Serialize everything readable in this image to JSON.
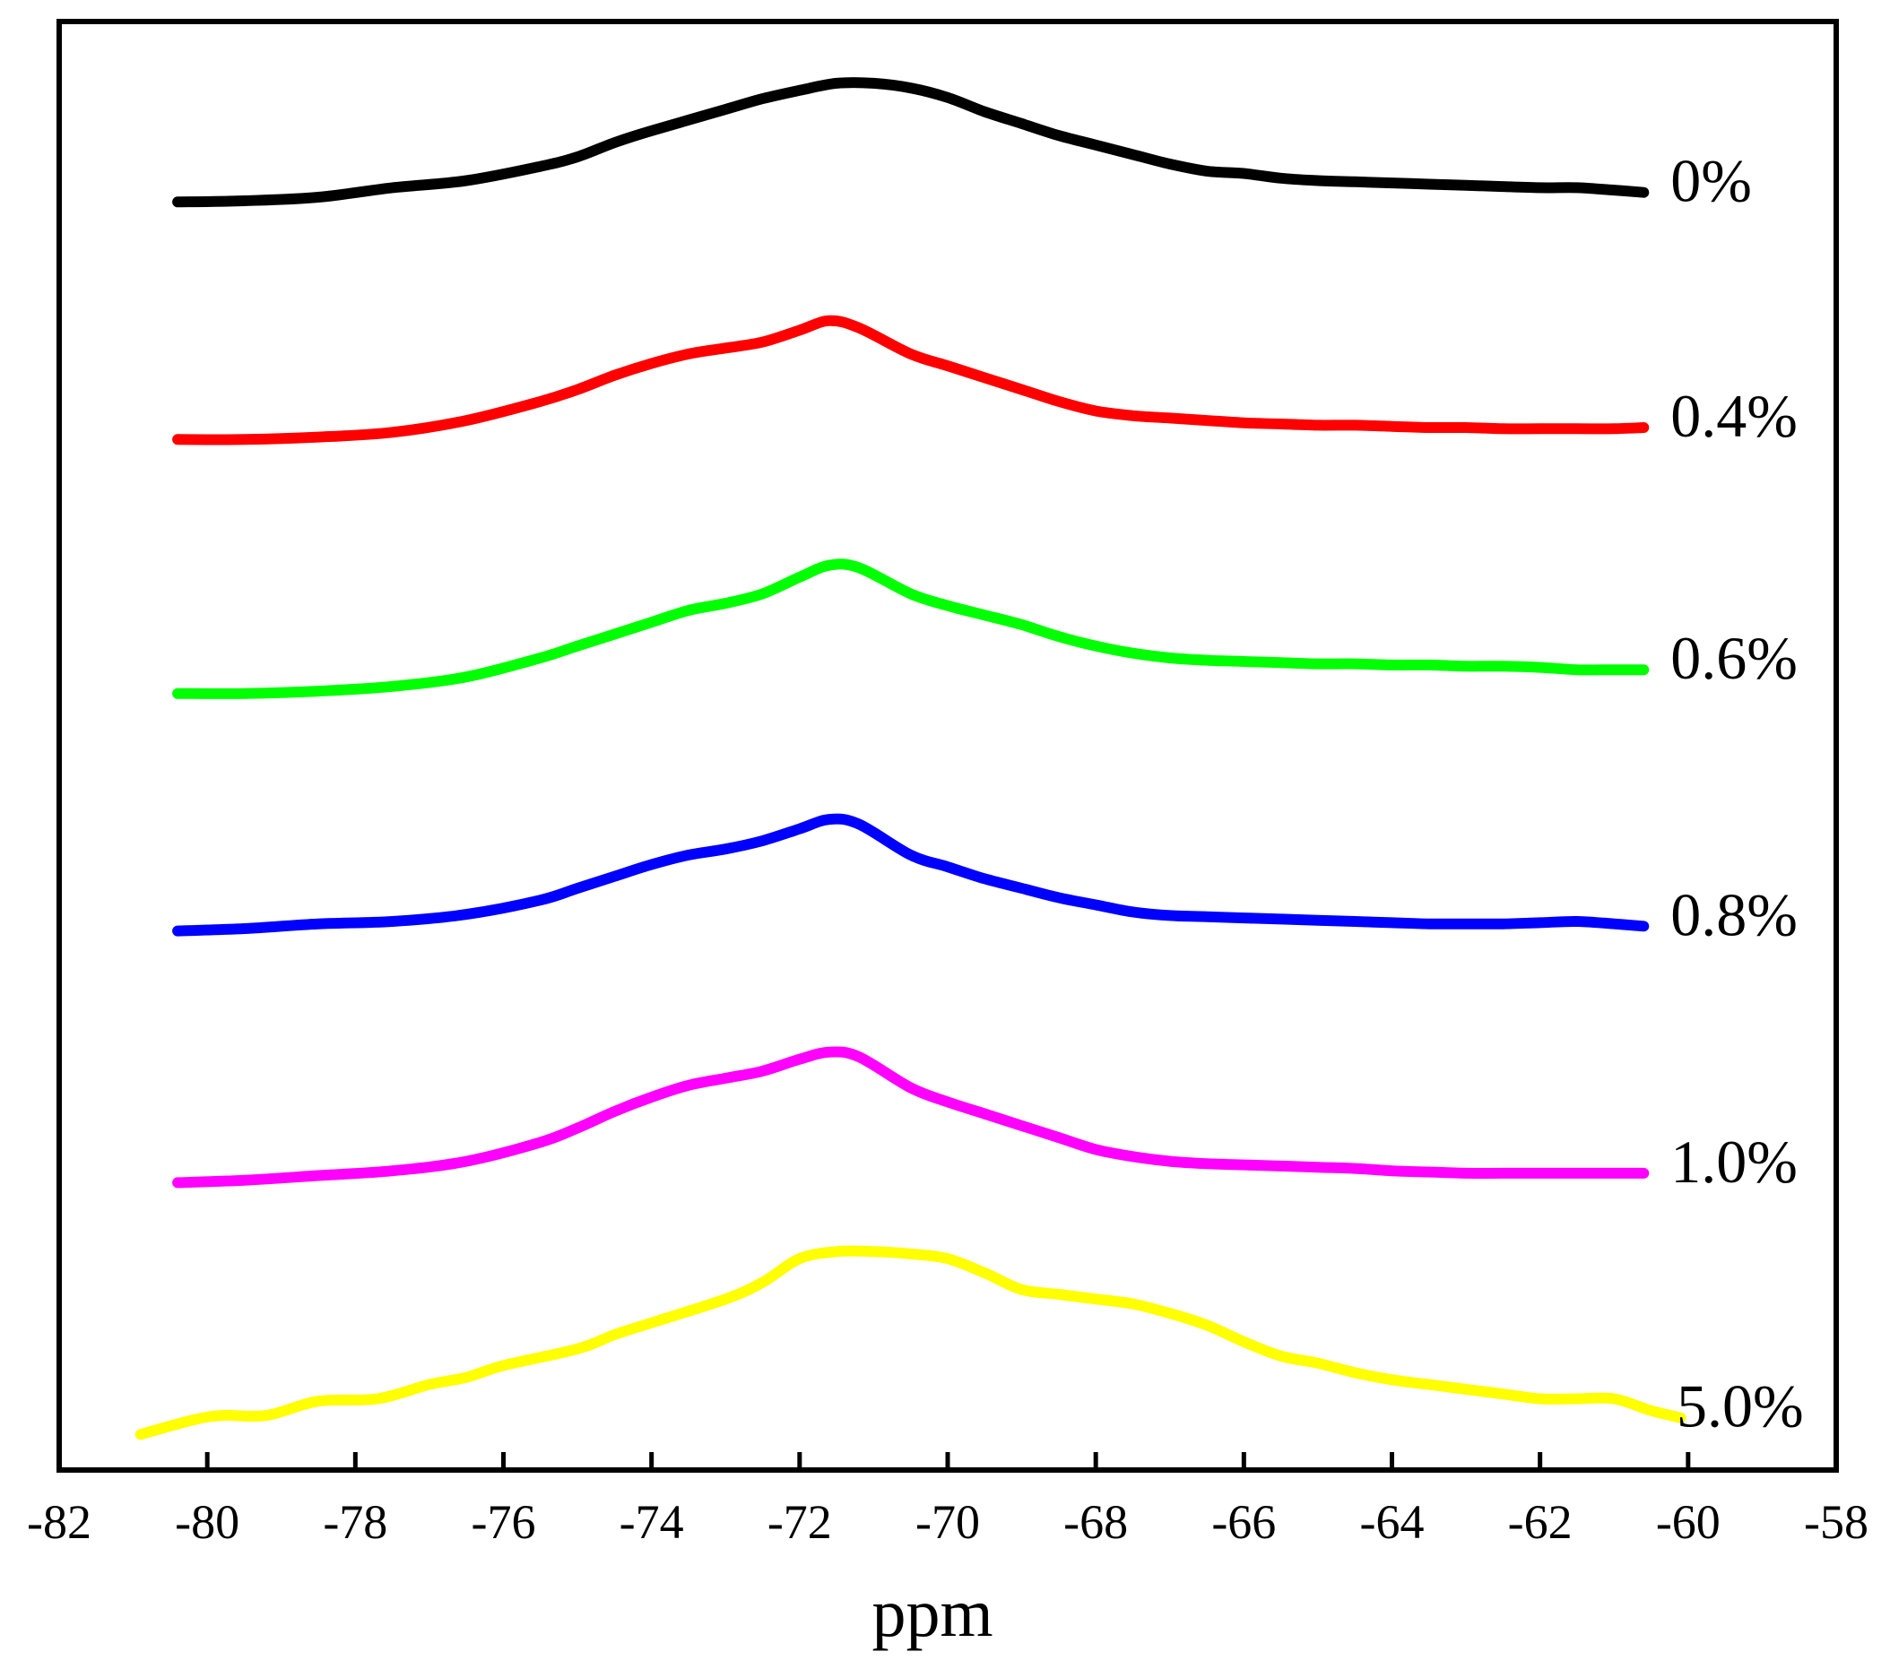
{
  "chart_data": {
    "type": "line",
    "title": "",
    "xlabel": "ppm",
    "ylabel": "",
    "xlim": [
      -82,
      -58
    ],
    "ylim": [
      -0.1,
      6.0
    ],
    "grid": false,
    "legend": "inline labels at right end of each curve",
    "xticks": [
      -82,
      -80,
      -78,
      -76,
      -74,
      -72,
      -70,
      -68,
      -66,
      -64,
      -62,
      -60,
      -58
    ],
    "xtick_labels": [
      "-82",
      "-80",
      "-78",
      "-76",
      "-74",
      "-72",
      "-70",
      "-68",
      "-66",
      "-64",
      "-62",
      "-60",
      "-58"
    ],
    "series": [
      {
        "name": "0%",
        "label": "0%",
        "color": "#000000",
        "x": [
          -80.4,
          -79.5,
          -78.5,
          -77.5,
          -76.5,
          -75.5,
          -75.0,
          -74.5,
          -74.0,
          -73.0,
          -72.5,
          -72.0,
          -71.5,
          -71.0,
          -70.5,
          -70.0,
          -69.5,
          -69.0,
          -68.5,
          -68.0,
          -67.5,
          -67.0,
          -66.5,
          -66.0,
          -65.5,
          -65.0,
          -64.5,
          -64.0,
          -63.5,
          -63.0,
          -62.5,
          -62.0,
          -61.5,
          -61.0,
          -60.6
        ],
        "y": [
          5.24,
          5.245,
          5.26,
          5.3,
          5.33,
          5.39,
          5.43,
          5.49,
          5.54,
          5.63,
          5.675,
          5.71,
          5.74,
          5.74,
          5.72,
          5.68,
          5.62,
          5.57,
          5.52,
          5.48,
          5.44,
          5.4,
          5.37,
          5.36,
          5.34,
          5.33,
          5.325,
          5.32,
          5.315,
          5.31,
          5.305,
          5.3,
          5.3,
          5.29,
          5.28
        ]
      },
      {
        "name": "0.4%",
        "label": "0.4%",
        "color": "#ff0000",
        "x": [
          -80.4,
          -79.5,
          -78.5,
          -77.5,
          -76.5,
          -75.5,
          -75.0,
          -74.5,
          -74.0,
          -73.5,
          -73.0,
          -72.5,
          -72.0,
          -71.6,
          -71.2,
          -70.5,
          -70.0,
          -69.5,
          -69.0,
          -68.5,
          -68.0,
          -67.5,
          -67.0,
          -66.5,
          -66.0,
          -65.5,
          -65.0,
          -64.5,
          -64.0,
          -63.5,
          -63.0,
          -62.5,
          -62.0,
          -61.5,
          -61.0,
          -60.6
        ],
        "y": [
          4.24,
          4.24,
          4.25,
          4.27,
          4.32,
          4.4,
          4.45,
          4.51,
          4.56,
          4.6,
          4.625,
          4.65,
          4.7,
          4.74,
          4.71,
          4.6,
          4.55,
          4.5,
          4.45,
          4.4,
          4.36,
          4.34,
          4.33,
          4.32,
          4.31,
          4.305,
          4.3,
          4.3,
          4.295,
          4.29,
          4.29,
          4.285,
          4.285,
          4.285,
          4.285,
          4.29
        ]
      },
      {
        "name": "0.6%",
        "label": "0.6%",
        "color": "#00ff00",
        "x": [
          -80.4,
          -79.5,
          -78.5,
          -77.5,
          -76.5,
          -75.5,
          -75.0,
          -74.5,
          -74.0,
          -73.5,
          -73.0,
          -72.5,
          -72.0,
          -71.6,
          -71.2,
          -70.5,
          -70.0,
          -69.5,
          -69.0,
          -68.5,
          -68.0,
          -67.5,
          -67.0,
          -66.5,
          -66.0,
          -65.5,
          -65.0,
          -64.5,
          -64.0,
          -63.5,
          -63.0,
          -62.5,
          -62.0,
          -61.5,
          -61.0,
          -60.6
        ],
        "y": [
          3.17,
          3.17,
          3.18,
          3.2,
          3.24,
          3.32,
          3.37,
          3.42,
          3.47,
          3.52,
          3.55,
          3.59,
          3.66,
          3.71,
          3.7,
          3.59,
          3.54,
          3.5,
          3.46,
          3.41,
          3.37,
          3.34,
          3.32,
          3.31,
          3.305,
          3.3,
          3.295,
          3.295,
          3.29,
          3.29,
          3.285,
          3.285,
          3.28,
          3.27,
          3.27,
          3.27
        ]
      },
      {
        "name": "0.8%",
        "label": "0.8%",
        "color": "#0000ff",
        "x": [
          -80.4,
          -79.5,
          -78.5,
          -77.5,
          -76.5,
          -75.5,
          -75.0,
          -74.5,
          -74.0,
          -73.5,
          -73.0,
          -72.5,
          -72.0,
          -71.6,
          -71.2,
          -70.5,
          -70.0,
          -69.5,
          -69.0,
          -68.5,
          -68.0,
          -67.5,
          -67.0,
          -66.5,
          -66.0,
          -65.5,
          -65.0,
          -64.5,
          -64.0,
          -63.5,
          -63.0,
          -62.5,
          -62.0,
          -61.5,
          -61.0,
          -60.6
        ],
        "y": [
          2.17,
          2.18,
          2.2,
          2.21,
          2.24,
          2.3,
          2.35,
          2.4,
          2.45,
          2.49,
          2.515,
          2.55,
          2.6,
          2.64,
          2.62,
          2.49,
          2.44,
          2.39,
          2.35,
          2.31,
          2.28,
          2.25,
          2.235,
          2.23,
          2.225,
          2.22,
          2.215,
          2.21,
          2.205,
          2.2,
          2.2,
          2.2,
          2.205,
          2.21,
          2.2,
          2.19
        ]
      },
      {
        "name": "1.0%",
        "label": "1.0%",
        "color": "#ff00ff",
        "x": [
          -80.4,
          -79.5,
          -78.5,
          -77.5,
          -76.5,
          -75.5,
          -75.0,
          -74.5,
          -74.0,
          -73.5,
          -73.0,
          -72.5,
          -72.0,
          -71.6,
          -71.2,
          -70.5,
          -70.0,
          -69.5,
          -69.0,
          -68.5,
          -68.0,
          -67.5,
          -67.0,
          -66.5,
          -66.0,
          -65.5,
          -65.0,
          -64.5,
          -64.0,
          -63.5,
          -63.0,
          -62.5,
          -62.0,
          -61.5,
          -61.0,
          -60.6
        ],
        "y": [
          1.11,
          1.12,
          1.14,
          1.16,
          1.2,
          1.28,
          1.34,
          1.41,
          1.47,
          1.52,
          1.55,
          1.58,
          1.63,
          1.66,
          1.64,
          1.51,
          1.45,
          1.4,
          1.35,
          1.3,
          1.25,
          1.22,
          1.2,
          1.19,
          1.185,
          1.18,
          1.175,
          1.17,
          1.16,
          1.155,
          1.15,
          1.15,
          1.15,
          1.15,
          1.15,
          1.15
        ]
      },
      {
        "name": "5.0%",
        "label": "5.0%",
        "color": "#ffff00",
        "x": [
          -80.9,
          -80.2,
          -79.8,
          -79.2,
          -78.5,
          -77.7,
          -77.0,
          -76.5,
          -76.0,
          -75.0,
          -74.5,
          -74.0,
          -73.0,
          -72.5,
          -72.0,
          -71.5,
          -71.0,
          -70.5,
          -70.0,
          -69.5,
          -69.0,
          -68.5,
          -68.0,
          -67.5,
          -67.0,
          -66.5,
          -66.0,
          -65.5,
          -65.0,
          -64.5,
          -64.0,
          -63.5,
          -63.0,
          -62.5,
          -62.0,
          -61.5,
          -61.0,
          -60.5,
          -60.1
        ],
        "y": [
          0.05,
          0.11,
          0.13,
          0.13,
          0.19,
          0.2,
          0.26,
          0.29,
          0.34,
          0.41,
          0.47,
          0.52,
          0.62,
          0.69,
          0.79,
          0.82,
          0.82,
          0.81,
          0.79,
          0.73,
          0.66,
          0.64,
          0.62,
          0.6,
          0.56,
          0.51,
          0.44,
          0.38,
          0.35,
          0.31,
          0.28,
          0.26,
          0.24,
          0.22,
          0.2,
          0.2,
          0.2,
          0.15,
          0.12
        ]
      }
    ]
  }
}
